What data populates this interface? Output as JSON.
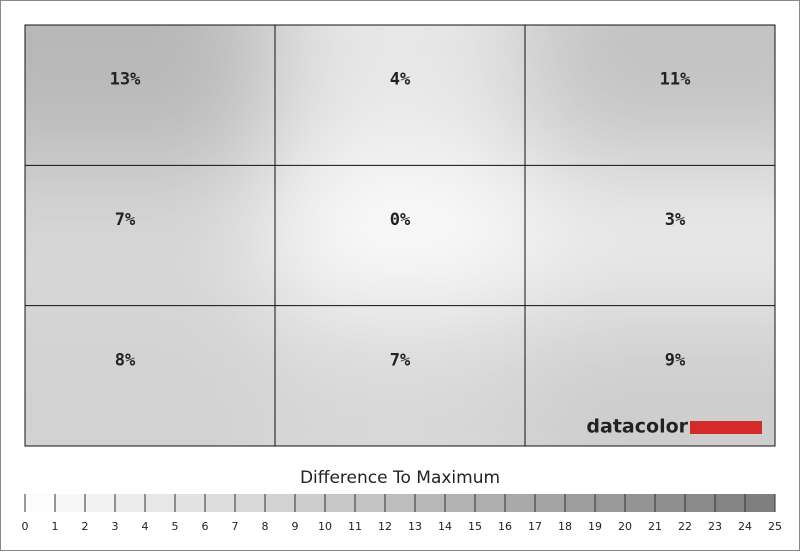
{
  "chart_data": {
    "type": "heatmap",
    "title": "Difference To Maximum",
    "brand": "datacolor",
    "brand_color": "#d42a2a",
    "rows": 3,
    "cols": 3,
    "values": [
      13,
      4,
      11,
      7,
      0,
      3,
      8,
      7,
      9
    ],
    "value_labels": [
      "13%",
      "4%",
      "11%",
      "7%",
      "0%",
      "3%",
      "8%",
      "7%",
      "9%"
    ],
    "clim": [
      0,
      25
    ],
    "cticks": [
      0,
      1,
      2,
      3,
      4,
      5,
      6,
      7,
      8,
      9,
      10,
      11,
      12,
      13,
      14,
      15,
      16,
      17,
      18,
      19,
      20,
      21,
      22,
      23,
      24,
      25
    ]
  }
}
